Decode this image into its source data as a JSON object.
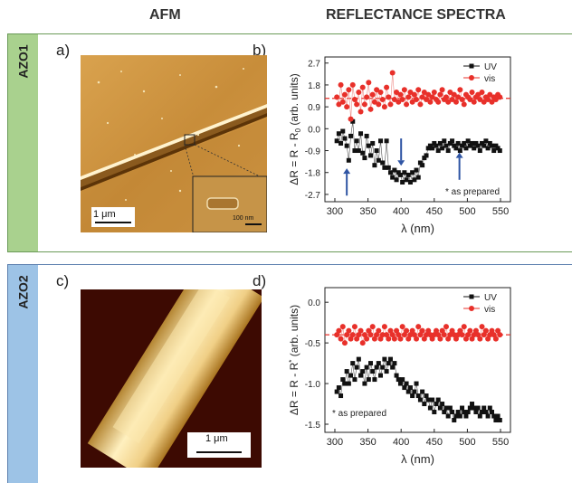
{
  "headers": {
    "afm": "AFM",
    "spectra": "REFLECTANCE SPECTRA"
  },
  "rows": [
    {
      "sample": "AZO1",
      "afm_letter": "a)",
      "spec_letter": "b)",
      "afm_scalebar": "1 μm",
      "inset_scalebar": "100 nm"
    },
    {
      "sample": "AZO2",
      "afm_letter": "c)",
      "spec_letter": "d)",
      "afm_scalebar": "1 μm"
    }
  ],
  "chart_data": [
    {
      "type": "scatter",
      "xlabel": "λ (nm)",
      "ylabel": "ΔR = R - R0 (arb. units)",
      "ylabel_parts": [
        "ΔR = R - R",
        "0",
        " (arb. units)"
      ],
      "xlim": [
        285,
        565
      ],
      "ylim": [
        -3.0,
        2.95
      ],
      "xticks": [
        300,
        350,
        400,
        450,
        500,
        550
      ],
      "yticks": [
        2.7,
        1.8,
        0.9,
        0.0,
        -0.9,
        -1.8,
        -2.7
      ],
      "ytick_labels": [
        "2.7",
        "1.8",
        "0.9",
        "0.0",
        "-0.9",
        "-1.8",
        "-2.7"
      ],
      "legend": {
        "position": "top-right",
        "entries": [
          "UV",
          "vis"
        ]
      },
      "reference_line": {
        "y": 1.25,
        "style": "dashed",
        "color": "#e8302a"
      },
      "annotation": "* as prepared",
      "arrows": [
        {
          "x": 318,
          "direction": "up"
        },
        {
          "x": 400,
          "direction": "down"
        },
        {
          "x": 488,
          "direction": "up"
        }
      ],
      "colors": {
        "uv": "#111111",
        "vis": "#e8302a",
        "arrow": "#2f55a4"
      },
      "series": [
        {
          "name": "UV",
          "x": [
            303,
            306,
            309,
            312,
            315,
            318,
            321,
            324,
            327,
            330,
            333,
            336,
            339,
            342,
            345,
            348,
            351,
            354,
            357,
            360,
            363,
            366,
            369,
            372,
            375,
            378,
            381,
            384,
            387,
            390,
            393,
            396,
            399,
            402,
            405,
            408,
            411,
            414,
            417,
            420,
            423,
            426,
            429,
            432,
            435,
            438,
            441,
            444,
            447,
            450,
            453,
            456,
            459,
            462,
            465,
            468,
            471,
            474,
            477,
            480,
            483,
            486,
            489,
            492,
            495,
            498,
            501,
            504,
            507,
            510,
            513,
            516,
            519,
            522,
            525,
            528,
            531,
            534,
            537,
            540,
            543,
            546,
            549
          ],
          "y": [
            -0.5,
            -0.2,
            -0.6,
            -0.1,
            -0.4,
            -0.7,
            -1.3,
            -0.3,
            0.3,
            -0.9,
            -0.5,
            -0.9,
            -0.2,
            -1.0,
            -1.2,
            -0.3,
            -0.7,
            -1.1,
            -0.6,
            -1.5,
            -0.9,
            -1.3,
            -0.5,
            -1.4,
            -1.6,
            -0.5,
            -1.6,
            -1.8,
            -2.0,
            -1.7,
            -2.1,
            -1.8,
            -1.9,
            -2.2,
            -1.8,
            -2.1,
            -1.9,
            -2.2,
            -1.8,
            -2.1,
            -1.7,
            -2.0,
            -1.4,
            -1.5,
            -1.2,
            -1.1,
            -0.8,
            -0.7,
            -0.8,
            -0.6,
            -0.7,
            -0.9,
            -0.6,
            -0.8,
            -0.5,
            -0.7,
            -0.9,
            -0.6,
            -0.5,
            -0.7,
            -0.8,
            -0.6,
            -0.9,
            -0.7,
            -0.6,
            -0.8,
            -0.5,
            -0.7,
            -0.6,
            -0.8,
            -0.6,
            -0.7,
            -0.9,
            -0.6,
            -0.7,
            -0.5,
            -0.8,
            -0.6,
            -0.7,
            -0.9,
            -0.7,
            -0.8,
            -0.9
          ]
        },
        {
          "name": "vis",
          "x": [
            303,
            306,
            309,
            312,
            315,
            318,
            321,
            324,
            327,
            330,
            333,
            336,
            339,
            342,
            345,
            348,
            351,
            354,
            357,
            360,
            363,
            366,
            369,
            372,
            375,
            378,
            381,
            384,
            387,
            390,
            393,
            396,
            399,
            402,
            405,
            408,
            411,
            414,
            417,
            420,
            423,
            426,
            429,
            432,
            435,
            438,
            441,
            444,
            447,
            450,
            453,
            456,
            459,
            462,
            465,
            468,
            471,
            474,
            477,
            480,
            483,
            486,
            489,
            492,
            495,
            498,
            501,
            504,
            507,
            510,
            513,
            516,
            519,
            522,
            525,
            528,
            531,
            534,
            537,
            540,
            543,
            546,
            549
          ],
          "y": [
            1.3,
            1.0,
            1.8,
            1.1,
            1.4,
            0.9,
            1.6,
            0.4,
            1.8,
            1.2,
            1.0,
            1.5,
            0.7,
            1.7,
            1.0,
            1.3,
            1.9,
            0.8,
            1.4,
            1.1,
            1.6,
            1.0,
            1.5,
            1.2,
            0.9,
            1.7,
            1.3,
            1.0,
            2.3,
            1.2,
            1.5,
            1.1,
            1.4,
            1.2,
            1.6,
            1.0,
            1.3,
            1.5,
            1.1,
            1.4,
            1.2,
            1.6,
            1.0,
            1.3,
            1.5,
            1.2,
            1.4,
            1.1,
            1.3,
            1.5,
            1.2,
            1.1,
            1.4,
            1.6,
            1.2,
            1.3,
            1.1,
            1.5,
            1.2,
            1.4,
            1.1,
            1.3,
            1.6,
            1.2,
            1.0,
            1.4,
            1.3,
            1.2,
            1.5,
            1.1,
            1.3,
            1.4,
            1.2,
            1.5,
            1.1,
            1.3,
            1.2,
            1.4,
            1.1,
            1.3,
            1.2,
            1.4,
            1.3
          ]
        }
      ]
    },
    {
      "type": "scatter",
      "xlabel": "λ (nm)",
      "ylabel": "ΔR = R - R* (arb. units)",
      "ylabel_parts": [
        "ΔR = R - R",
        "*",
        " (arb. units)"
      ],
      "xlim": [
        285,
        565
      ],
      "ylim": [
        -1.6,
        0.18
      ],
      "xticks": [
        300,
        350,
        400,
        450,
        500,
        550
      ],
      "yticks": [
        0.0,
        -0.5,
        -1.0,
        -1.5
      ],
      "ytick_labels": [
        "0.0",
        "-0.5",
        "-1.0",
        "-1.5"
      ],
      "legend": {
        "position": "top-right",
        "entries": [
          "UV",
          "vis"
        ]
      },
      "reference_line": {
        "y": -0.4,
        "style": "dashed",
        "color": "#e8302a"
      },
      "annotation": "* as prepared",
      "colors": {
        "uv": "#111111",
        "vis": "#e8302a"
      },
      "series": [
        {
          "name": "UV",
          "x": [
            303,
            306,
            309,
            312,
            315,
            318,
            321,
            324,
            327,
            330,
            333,
            336,
            339,
            342,
            345,
            348,
            351,
            354,
            357,
            360,
            363,
            366,
            369,
            372,
            375,
            378,
            381,
            384,
            387,
            390,
            393,
            396,
            399,
            402,
            405,
            408,
            411,
            414,
            417,
            420,
            423,
            426,
            429,
            432,
            435,
            438,
            441,
            444,
            447,
            450,
            453,
            456,
            459,
            462,
            465,
            468,
            471,
            474,
            477,
            480,
            483,
            486,
            489,
            492,
            495,
            498,
            501,
            504,
            507,
            510,
            513,
            516,
            519,
            522,
            525,
            528,
            531,
            534,
            537,
            540,
            543,
            546,
            549
          ],
          "y": [
            -1.1,
            -1.05,
            -1.15,
            -0.95,
            -1.0,
            -0.85,
            -1.0,
            -0.9,
            -0.75,
            -0.95,
            -0.8,
            -0.7,
            -0.9,
            -0.85,
            -1.0,
            -0.8,
            -0.95,
            -0.75,
            -0.85,
            -0.95,
            -0.8,
            -0.75,
            -0.9,
            -0.8,
            -0.7,
            -0.85,
            -0.75,
            -0.7,
            -0.8,
            -0.75,
            -0.9,
            -0.95,
            -1.0,
            -0.95,
            -1.05,
            -1.0,
            -1.1,
            -1.05,
            -1.15,
            -1.1,
            -1.0,
            -1.15,
            -1.2,
            -1.1,
            -1.25,
            -1.15,
            -1.2,
            -1.3,
            -1.2,
            -1.35,
            -1.25,
            -1.2,
            -1.3,
            -1.25,
            -1.35,
            -1.3,
            -1.4,
            -1.3,
            -1.35,
            -1.45,
            -1.4,
            -1.35,
            -1.4,
            -1.3,
            -1.35,
            -1.4,
            -1.35,
            -1.3,
            -1.25,
            -1.3,
            -1.35,
            -1.3,
            -1.4,
            -1.35,
            -1.3,
            -1.35,
            -1.4,
            -1.3,
            -1.35,
            -1.4,
            -1.45,
            -1.4,
            -1.45
          ]
        },
        {
          "name": "vis",
          "x": [
            303,
            306,
            309,
            312,
            315,
            318,
            321,
            324,
            327,
            330,
            333,
            336,
            339,
            342,
            345,
            348,
            351,
            354,
            357,
            360,
            363,
            366,
            369,
            372,
            375,
            378,
            381,
            384,
            387,
            390,
            393,
            396,
            399,
            402,
            405,
            408,
            411,
            414,
            417,
            420,
            423,
            426,
            429,
            432,
            435,
            438,
            441,
            444,
            447,
            450,
            453,
            456,
            459,
            462,
            465,
            468,
            471,
            474,
            477,
            480,
            483,
            486,
            489,
            492,
            495,
            498,
            501,
            504,
            507,
            510,
            513,
            516,
            519,
            522,
            525,
            528,
            531,
            534,
            537,
            540,
            543,
            546,
            549
          ],
          "y": [
            -0.4,
            -0.35,
            -0.45,
            -0.3,
            -0.5,
            -0.4,
            -0.35,
            -0.45,
            -0.4,
            -0.3,
            -0.45,
            -0.4,
            -0.35,
            -0.5,
            -0.4,
            -0.45,
            -0.35,
            -0.4,
            -0.3,
            -0.45,
            -0.4,
            -0.35,
            -0.45,
            -0.4,
            -0.3,
            -0.4,
            -0.45,
            -0.35,
            -0.4,
            -0.45,
            -0.35,
            -0.4,
            -0.45,
            -0.3,
            -0.4,
            -0.35,
            -0.45,
            -0.4,
            -0.35,
            -0.4,
            -0.45,
            -0.3,
            -0.4,
            -0.35,
            -0.45,
            -0.4,
            -0.35,
            -0.4,
            -0.45,
            -0.4,
            -0.35,
            -0.4,
            -0.45,
            -0.35,
            -0.4,
            -0.3,
            -0.45,
            -0.4,
            -0.35,
            -0.4,
            -0.45,
            -0.4,
            -0.35,
            -0.4,
            -0.3,
            -0.45,
            -0.4,
            -0.35,
            -0.45,
            -0.4,
            -0.35,
            -0.4,
            -0.45,
            -0.3,
            -0.4,
            -0.35,
            -0.45,
            -0.4,
            -0.35,
            -0.4,
            -0.45,
            -0.35,
            -0.4
          ]
        }
      ]
    }
  ]
}
